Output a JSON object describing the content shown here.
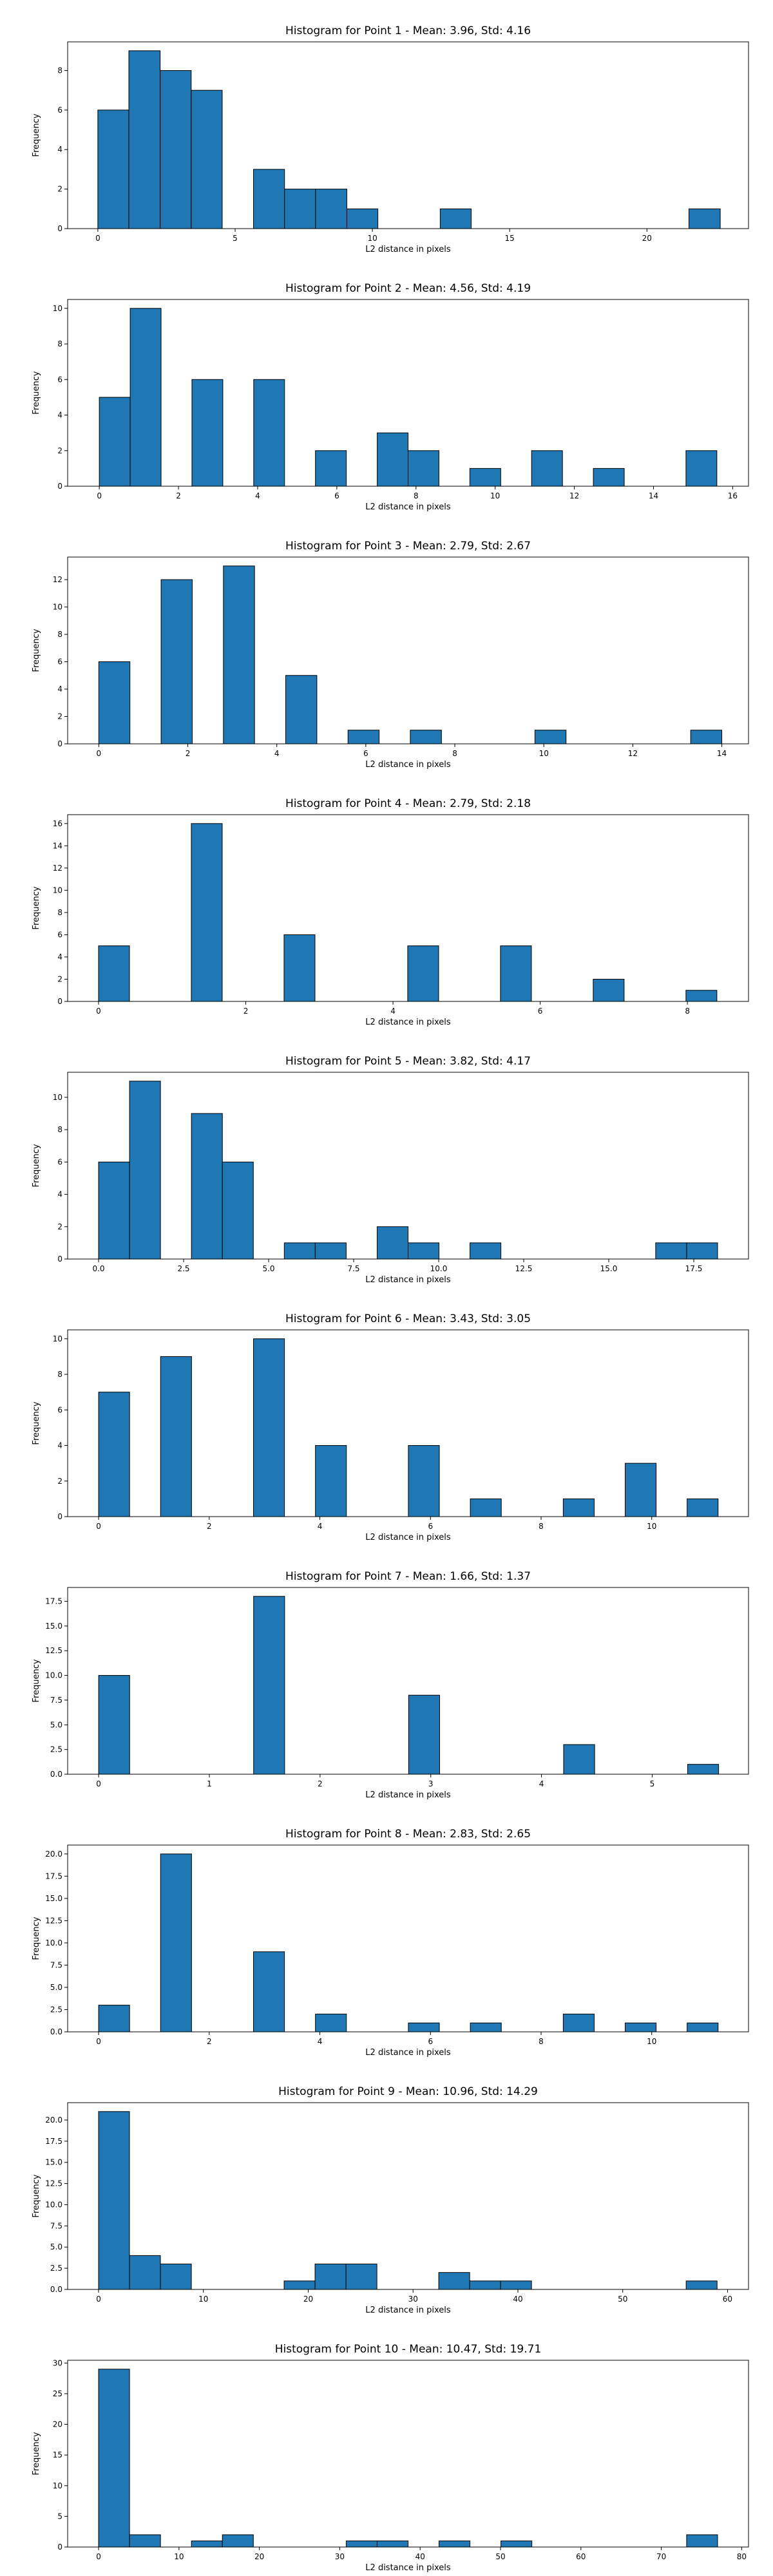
{
  "colors": {
    "bar_fill": "#1f77b4",
    "bar_edge": "#000000"
  },
  "chart_data": [
    {
      "type": "bar",
      "title": "Histogram for Point 1 - Mean: 3.96, Std: 4.16",
      "xlabel": "L2 distance in pixels",
      "ylabel": "Frequency",
      "xlim": [
        -1.1,
        23.7
      ],
      "ylim": [
        0,
        9.45
      ],
      "xticks": [
        0,
        5,
        10,
        15,
        20
      ],
      "xtick_labels": [
        "0",
        "5",
        "10",
        "15",
        "20"
      ],
      "yticks": [
        0,
        2,
        4,
        6,
        8
      ],
      "ytick_labels": [
        "0",
        "2",
        "4",
        "6",
        "8"
      ],
      "bins": [
        {
          "x0": 0.0,
          "x1": 1.13,
          "value": 6
        },
        {
          "x0": 1.13,
          "x1": 2.27,
          "value": 9
        },
        {
          "x0": 2.27,
          "x1": 3.4,
          "value": 8
        },
        {
          "x0": 3.4,
          "x1": 4.53,
          "value": 7
        },
        {
          "x0": 5.67,
          "x1": 6.8,
          "value": 3
        },
        {
          "x0": 6.8,
          "x1": 7.93,
          "value": 2
        },
        {
          "x0": 7.93,
          "x1": 9.07,
          "value": 2
        },
        {
          "x0": 9.07,
          "x1": 10.2,
          "value": 1
        },
        {
          "x0": 12.47,
          "x1": 13.6,
          "value": 1
        },
        {
          "x0": 21.53,
          "x1": 22.67,
          "value": 1
        }
      ]
    },
    {
      "type": "bar",
      "title": "Histogram for Point 2 - Mean: 4.56, Std: 4.19",
      "xlabel": "L2 distance in pixels",
      "ylabel": "Frequency",
      "xlim": [
        -0.8,
        16.4
      ],
      "ylim": [
        0,
        10.5
      ],
      "xticks": [
        0,
        2,
        4,
        6,
        8,
        10,
        12,
        14,
        16
      ],
      "xtick_labels": [
        "0",
        "2",
        "4",
        "6",
        "8",
        "10",
        "12",
        "14",
        "16"
      ],
      "yticks": [
        0,
        2,
        4,
        6,
        8,
        10
      ],
      "ytick_labels": [
        "0",
        "2",
        "4",
        "6",
        "8",
        "10"
      ],
      "bins": [
        {
          "x0": 0.0,
          "x1": 0.78,
          "value": 5
        },
        {
          "x0": 0.78,
          "x1": 1.56,
          "value": 10
        },
        {
          "x0": 2.34,
          "x1": 3.12,
          "value": 6
        },
        {
          "x0": 3.9,
          "x1": 4.68,
          "value": 6
        },
        {
          "x0": 5.46,
          "x1": 6.24,
          "value": 2
        },
        {
          "x0": 7.02,
          "x1": 7.8,
          "value": 3
        },
        {
          "x0": 7.8,
          "x1": 8.58,
          "value": 2
        },
        {
          "x0": 9.36,
          "x1": 10.14,
          "value": 1
        },
        {
          "x0": 10.92,
          "x1": 11.7,
          "value": 2
        },
        {
          "x0": 12.48,
          "x1": 13.26,
          "value": 1
        },
        {
          "x0": 14.82,
          "x1": 15.6,
          "value": 2
        }
      ]
    },
    {
      "type": "bar",
      "title": "Histogram for Point 3 - Mean: 2.79, Std: 2.67",
      "xlabel": "L2 distance in pixels",
      "ylabel": "Frequency",
      "xlim": [
        -0.7,
        14.6
      ],
      "ylim": [
        0,
        13.65
      ],
      "xticks": [
        0,
        2,
        4,
        6,
        8,
        10,
        12,
        14
      ],
      "xtick_labels": [
        "0",
        "2",
        "4",
        "6",
        "8",
        "10",
        "12",
        "14"
      ],
      "yticks": [
        0,
        2,
        4,
        6,
        8,
        10,
        12
      ],
      "ytick_labels": [
        "0",
        "2",
        "4",
        "6",
        "8",
        "10",
        "12"
      ],
      "bins": [
        {
          "x0": 0.0,
          "x1": 0.7,
          "value": 6
        },
        {
          "x0": 1.4,
          "x1": 2.1,
          "value": 12
        },
        {
          "x0": 2.8,
          "x1": 3.5,
          "value": 13
        },
        {
          "x0": 4.2,
          "x1": 4.9,
          "value": 5
        },
        {
          "x0": 5.6,
          "x1": 6.3,
          "value": 1
        },
        {
          "x0": 7.0,
          "x1": 7.7,
          "value": 1
        },
        {
          "x0": 9.8,
          "x1": 10.5,
          "value": 1
        },
        {
          "x0": 13.3,
          "x1": 14.0,
          "value": 1
        }
      ]
    },
    {
      "type": "bar",
      "title": "Histogram for Point 4 - Mean: 2.79, Std: 2.18",
      "xlabel": "L2 distance in pixels",
      "ylabel": "Frequency",
      "xlim": [
        -0.42,
        8.83
      ],
      "ylim": [
        0,
        16.8
      ],
      "xticks": [
        0,
        2,
        4,
        6,
        8
      ],
      "xtick_labels": [
        "0",
        "2",
        "4",
        "6",
        "8"
      ],
      "yticks": [
        0,
        2,
        4,
        6,
        8,
        10,
        12,
        14,
        16
      ],
      "ytick_labels": [
        "0",
        "2",
        "4",
        "6",
        "8",
        "10",
        "12",
        "14",
        "16"
      ],
      "bins": [
        {
          "x0": 0.0,
          "x1": 0.42,
          "value": 5
        },
        {
          "x0": 1.26,
          "x1": 1.68,
          "value": 16
        },
        {
          "x0": 2.52,
          "x1": 2.94,
          "value": 6
        },
        {
          "x0": 4.2,
          "x1": 4.62,
          "value": 5
        },
        {
          "x0": 5.46,
          "x1": 5.88,
          "value": 5
        },
        {
          "x0": 6.72,
          "x1": 7.14,
          "value": 2
        },
        {
          "x0": 7.98,
          "x1": 8.4,
          "value": 1
        }
      ]
    },
    {
      "type": "bar",
      "title": "Histogram for Point 5 - Mean: 3.82, Std: 4.17",
      "xlabel": "L2 distance in pixels",
      "ylabel": "Frequency",
      "xlim": [
        -0.91,
        19.11
      ],
      "ylim": [
        0,
        11.55
      ],
      "xticks": [
        0,
        2.5,
        5,
        7.5,
        10,
        12.5,
        15,
        17.5
      ],
      "xtick_labels": [
        "0.0",
        "2.5",
        "5.0",
        "7.5",
        "10.0",
        "12.5",
        "15.0",
        "17.5"
      ],
      "yticks": [
        0,
        2,
        4,
        6,
        8,
        10
      ],
      "ytick_labels": [
        "0",
        "2",
        "4",
        "6",
        "8",
        "10"
      ],
      "bins": [
        {
          "x0": 0.0,
          "x1": 0.91,
          "value": 6
        },
        {
          "x0": 0.91,
          "x1": 1.82,
          "value": 11
        },
        {
          "x0": 2.73,
          "x1": 3.64,
          "value": 9
        },
        {
          "x0": 3.64,
          "x1": 4.55,
          "value": 6
        },
        {
          "x0": 5.46,
          "x1": 6.37,
          "value": 1
        },
        {
          "x0": 6.37,
          "x1": 7.28,
          "value": 1
        },
        {
          "x0": 8.19,
          "x1": 9.1,
          "value": 2
        },
        {
          "x0": 9.1,
          "x1": 10.01,
          "value": 1
        },
        {
          "x0": 10.92,
          "x1": 11.83,
          "value": 1
        },
        {
          "x0": 16.38,
          "x1": 17.29,
          "value": 1
        },
        {
          "x0": 17.29,
          "x1": 18.2,
          "value": 1
        }
      ]
    },
    {
      "type": "bar",
      "title": "Histogram for Point 6 - Mean: 3.43, Std: 3.05",
      "xlabel": "L2 distance in pixels",
      "ylabel": "Frequency",
      "xlim": [
        -0.56,
        11.75
      ],
      "ylim": [
        0,
        10.5
      ],
      "xticks": [
        0,
        2,
        4,
        6,
        8,
        10
      ],
      "xtick_labels": [
        "0",
        "2",
        "4",
        "6",
        "8",
        "10"
      ],
      "yticks": [
        0,
        2,
        4,
        6,
        8,
        10
      ],
      "ytick_labels": [
        "0",
        "2",
        "4",
        "6",
        "8",
        "10"
      ],
      "bins": [
        {
          "x0": 0.0,
          "x1": 0.56,
          "value": 7
        },
        {
          "x0": 1.12,
          "x1": 1.68,
          "value": 9
        },
        {
          "x0": 2.8,
          "x1": 3.36,
          "value": 10
        },
        {
          "x0": 3.92,
          "x1": 4.48,
          "value": 4
        },
        {
          "x0": 5.6,
          "x1": 6.16,
          "value": 4
        },
        {
          "x0": 6.72,
          "x1": 7.28,
          "value": 1
        },
        {
          "x0": 8.4,
          "x1": 8.96,
          "value": 1
        },
        {
          "x0": 9.52,
          "x1": 10.08,
          "value": 3
        },
        {
          "x0": 10.64,
          "x1": 11.2,
          "value": 1
        }
      ]
    },
    {
      "type": "bar",
      "title": "Histogram for Point 7 - Mean: 1.66, Std: 1.37",
      "xlabel": "L2 distance in pixels",
      "ylabel": "Frequency",
      "xlim": [
        -0.28,
        5.87
      ],
      "ylim": [
        0,
        18.9
      ],
      "xticks": [
        0,
        1,
        2,
        3,
        4,
        5
      ],
      "xtick_labels": [
        "0",
        "1",
        "2",
        "3",
        "4",
        "5"
      ],
      "yticks": [
        0,
        2.5,
        5,
        7.5,
        10,
        12.5,
        15,
        17.5
      ],
      "ytick_labels": [
        "0.0",
        "2.5",
        "5.0",
        "7.5",
        "10.0",
        "12.5",
        "15.0",
        "17.5"
      ],
      "bins": [
        {
          "x0": 0.0,
          "x1": 0.28,
          "value": 10
        },
        {
          "x0": 1.4,
          "x1": 1.68,
          "value": 18
        },
        {
          "x0": 2.8,
          "x1": 3.08,
          "value": 8
        },
        {
          "x0": 4.2,
          "x1": 4.48,
          "value": 3
        },
        {
          "x0": 5.32,
          "x1": 5.6,
          "value": 1
        }
      ]
    },
    {
      "type": "bar",
      "title": "Histogram for Point 8 - Mean: 2.83, Std: 2.65",
      "xlabel": "L2 distance in pixels",
      "ylabel": "Frequency",
      "xlim": [
        -0.56,
        11.75
      ],
      "ylim": [
        0,
        21
      ],
      "xticks": [
        0,
        2,
        4,
        6,
        8,
        10
      ],
      "xtick_labels": [
        "0",
        "2",
        "4",
        "6",
        "8",
        "10"
      ],
      "yticks": [
        0,
        2.5,
        5,
        7.5,
        10,
        12.5,
        15,
        17.5,
        20
      ],
      "ytick_labels": [
        "0.0",
        "2.5",
        "5.0",
        "7.5",
        "10.0",
        "12.5",
        "15.0",
        "17.5",
        "20.0"
      ],
      "bins": [
        {
          "x0": 0.0,
          "x1": 0.56,
          "value": 3
        },
        {
          "x0": 1.12,
          "x1": 1.68,
          "value": 20
        },
        {
          "x0": 2.8,
          "x1": 3.36,
          "value": 9
        },
        {
          "x0": 3.92,
          "x1": 4.48,
          "value": 2
        },
        {
          "x0": 5.6,
          "x1": 6.16,
          "value": 1
        },
        {
          "x0": 6.72,
          "x1": 7.28,
          "value": 1
        },
        {
          "x0": 8.4,
          "x1": 8.96,
          "value": 2
        },
        {
          "x0": 9.52,
          "x1": 10.08,
          "value": 1
        },
        {
          "x0": 10.64,
          "x1": 11.2,
          "value": 1
        }
      ]
    },
    {
      "type": "bar",
      "title": "Histogram for Point 9 - Mean: 10.96, Std: 14.29",
      "xlabel": "L2 distance in pixels",
      "ylabel": "Frequency",
      "xlim": [
        -2.95,
        62.0
      ],
      "ylim": [
        0,
        22.05
      ],
      "xticks": [
        0,
        10,
        20,
        30,
        40,
        50,
        60
      ],
      "xtick_labels": [
        "0",
        "10",
        "20",
        "30",
        "40",
        "50",
        "60"
      ],
      "yticks": [
        0,
        2.5,
        5,
        7.5,
        10,
        12.5,
        15,
        17.5,
        20
      ],
      "ytick_labels": [
        "0.0",
        "2.5",
        "5.0",
        "7.5",
        "10.0",
        "12.5",
        "15.0",
        "17.5",
        "20.0"
      ],
      "bins": [
        {
          "x0": 0.0,
          "x1": 2.95,
          "value": 21
        },
        {
          "x0": 2.95,
          "x1": 5.9,
          "value": 4
        },
        {
          "x0": 5.9,
          "x1": 8.85,
          "value": 3
        },
        {
          "x0": 17.7,
          "x1": 20.65,
          "value": 1
        },
        {
          "x0": 20.65,
          "x1": 23.6,
          "value": 3
        },
        {
          "x0": 23.6,
          "x1": 26.55,
          "value": 3
        },
        {
          "x0": 32.45,
          "x1": 35.4,
          "value": 2
        },
        {
          "x0": 35.4,
          "x1": 38.35,
          "value": 1
        },
        {
          "x0": 38.35,
          "x1": 41.3,
          "value": 1
        },
        {
          "x0": 56.05,
          "x1": 59.0,
          "value": 1
        }
      ]
    },
    {
      "type": "bar",
      "title": "Histogram for Point 10 - Mean: 10.47, Std: 19.71",
      "xlabel": "L2 distance in pixels",
      "ylabel": "Frequency",
      "xlim": [
        -3.85,
        80.85
      ],
      "ylim": [
        0,
        30.45
      ],
      "xticks": [
        0,
        10,
        20,
        30,
        40,
        50,
        60,
        70,
        80
      ],
      "xtick_labels": [
        "0",
        "10",
        "20",
        "30",
        "40",
        "50",
        "60",
        "70",
        "80"
      ],
      "yticks": [
        0,
        5,
        10,
        15,
        20,
        25,
        30
      ],
      "ytick_labels": [
        "0",
        "5",
        "10",
        "15",
        "20",
        "25",
        "30"
      ],
      "bins": [
        {
          "x0": 0.0,
          "x1": 3.85,
          "value": 29
        },
        {
          "x0": 3.85,
          "x1": 7.7,
          "value": 2
        },
        {
          "x0": 11.55,
          "x1": 15.4,
          "value": 1
        },
        {
          "x0": 15.4,
          "x1": 19.25,
          "value": 2
        },
        {
          "x0": 30.8,
          "x1": 34.65,
          "value": 1
        },
        {
          "x0": 34.65,
          "x1": 38.5,
          "value": 1
        },
        {
          "x0": 42.35,
          "x1": 46.2,
          "value": 1
        },
        {
          "x0": 50.05,
          "x1": 53.9,
          "value": 1
        },
        {
          "x0": 73.15,
          "x1": 77.0,
          "value": 2
        }
      ]
    }
  ]
}
